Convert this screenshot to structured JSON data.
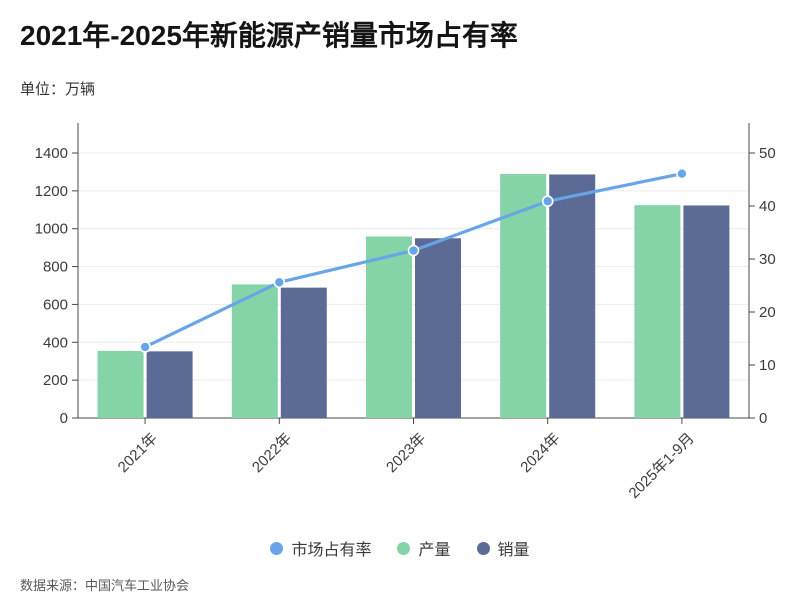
{
  "header": {
    "title": "2021年-2025年新能源产销量市场占有率",
    "unit_label": "单位：万辆"
  },
  "footer": {
    "source": "数据来源：中国汽车工业协会"
  },
  "chart_data": {
    "type": "bar",
    "subtype": "grouped-bars-with-line-combo",
    "categories": [
      "2021年",
      "2022年",
      "2023年",
      "2024年",
      "2025年1-9月"
    ],
    "series": [
      {
        "name": "市场占有率",
        "type": "line",
        "axis": "right",
        "color": "#68a5e8",
        "marker": "circle",
        "values": [
          13.4,
          25.6,
          31.6,
          40.9,
          46.1
        ]
      },
      {
        "name": "产量",
        "type": "bar",
        "axis": "left",
        "color": "#84d4a8",
        "values": [
          354.5,
          705.8,
          958.7,
          1288.8,
          1124.3
        ]
      },
      {
        "name": "销量",
        "type": "bar",
        "axis": "left",
        "color": "#5b6b96",
        "values": [
          352.1,
          688.7,
          949.5,
          1286.6,
          1122.8
        ]
      }
    ],
    "title": "2021年-2025年新能源产销量市场占有率",
    "ylabel": "单位：万辆",
    "left_axis": {
      "ticks": [
        0,
        200,
        400,
        600,
        800,
        1000,
        1200,
        1400
      ],
      "max": 1400
    },
    "right_axis": {
      "ticks": [
        0,
        10,
        20,
        30,
        40,
        50
      ],
      "max": 50
    },
    "grid": true,
    "gridlines": "horizontal-left-axis-only",
    "legend_position": "bottom",
    "x_label_rotation": -45,
    "colors": {
      "grid": "#ececec",
      "axis": "#4a4a4a",
      "tick_text": "#3c3c3c",
      "marker_stroke": "#ffffff"
    }
  }
}
